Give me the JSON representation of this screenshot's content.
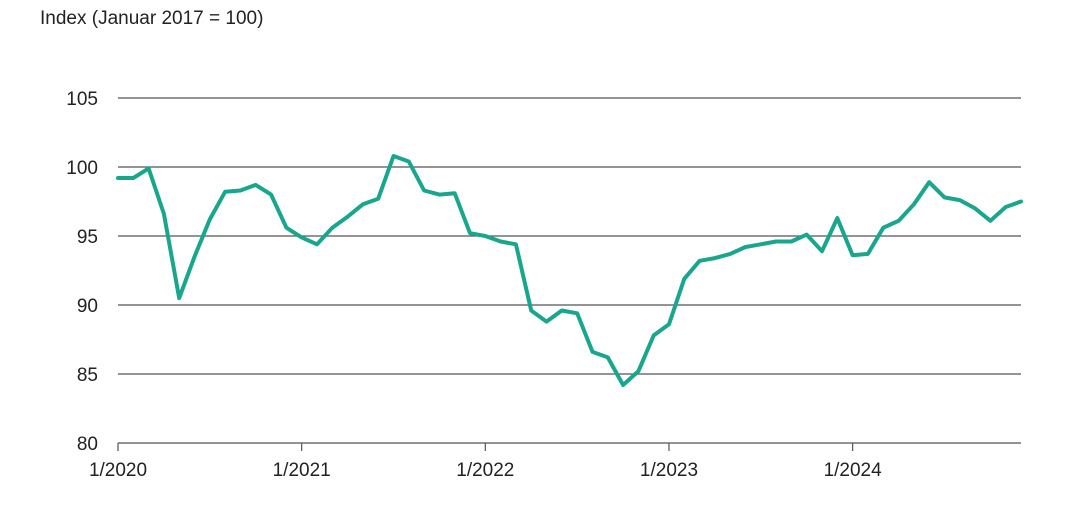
{
  "chart_data": {
    "type": "line",
    "title": "",
    "ylabel": "Index (Januar 2017 = 100)",
    "xlabel": "",
    "ylim": [
      80,
      105
    ],
    "yticks": [
      80,
      85,
      90,
      95,
      100,
      105
    ],
    "xticks": [
      {
        "label": "1/2020",
        "month_index": 0
      },
      {
        "label": "1/2021",
        "month_index": 12
      },
      {
        "label": "1/2022",
        "month_index": 24
      },
      {
        "label": "1/2023",
        "month_index": 36
      },
      {
        "label": "1/2024",
        "month_index": 48
      }
    ],
    "x_range": [
      0,
      59
    ],
    "grid": true,
    "color": "#1aa68c",
    "series": [
      {
        "name": "Index",
        "values": [
          99.2,
          99.2,
          99.9,
          96.6,
          90.5,
          93.5,
          96.2,
          98.2,
          98.3,
          98.7,
          98.0,
          95.6,
          94.9,
          94.4,
          95.6,
          96.4,
          97.3,
          97.7,
          100.8,
          100.4,
          98.3,
          98.0,
          98.1,
          95.2,
          95.0,
          94.6,
          94.4,
          89.6,
          88.8,
          89.6,
          89.4,
          86.6,
          86.2,
          84.2,
          85.2,
          87.8,
          88.6,
          91.9,
          93.2,
          93.4,
          93.7,
          94.2,
          94.4,
          94.6,
          94.6,
          95.1,
          93.9,
          96.3,
          93.6,
          93.7,
          95.6,
          96.1,
          97.3,
          98.9,
          97.8,
          97.6,
          97.0,
          96.1,
          97.1,
          97.5
        ]
      }
    ]
  }
}
